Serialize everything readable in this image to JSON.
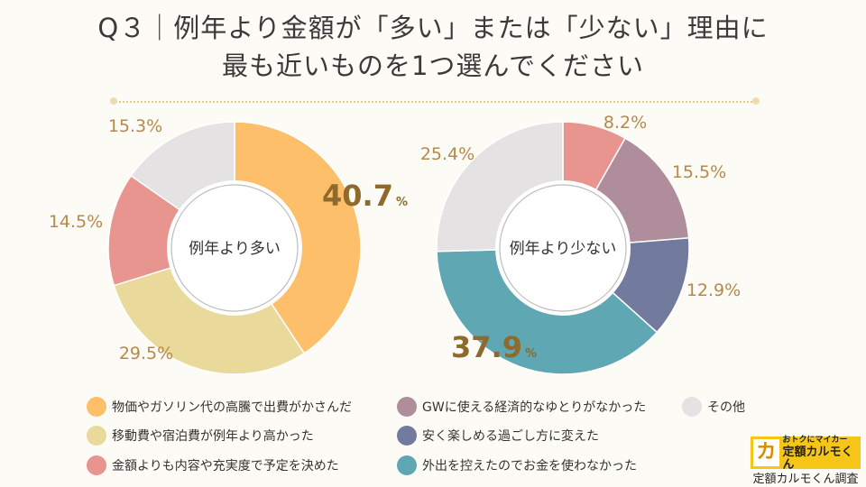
{
  "title": {
    "line1": "Q３｜例年より金額が「多い」または「少ない」理由に",
    "line2": "最も近いものを1つ選んでください"
  },
  "colors": {
    "gas": "#fdbf6a",
    "travel": "#e9d99a",
    "content": "#e8958f",
    "gw": "#b08d9b",
    "activity": "#727b9d",
    "outing": "#5ea7b3",
    "other": "#e4e2e2",
    "label": "#b5894a",
    "label_big": "#8e6a2e"
  },
  "chart_data": [
    {
      "type": "pie",
      "center_label": "例年より多い",
      "slices": [
        {
          "name": "物価やガソリン代の高騰で出費がかさんだ",
          "value": 40.7,
          "label": "40.7",
          "color_key": "gas",
          "emphasis": true
        },
        {
          "name": "移動費や宿泊費が例年より高かった",
          "value": 29.5,
          "label": "29.5%",
          "color_key": "travel"
        },
        {
          "name": "金額よりも内容や充実度で予定を決めた",
          "value": 14.5,
          "label": "14.5%",
          "color_key": "content"
        },
        {
          "name": "その他",
          "value": 15.3,
          "label": "15.3%",
          "color_key": "other"
        }
      ]
    },
    {
      "type": "pie",
      "center_label": "例年より少ない",
      "slices": [
        {
          "name": "金額よりも内容や充実度で予定を決めた",
          "value": 8.2,
          "label": "8.2%",
          "color_key": "content"
        },
        {
          "name": "GWに使える経済的なゆとりがなかった",
          "value": 15.5,
          "label": "15.5%",
          "color_key": "gw"
        },
        {
          "name": "安く楽しめる過ごし方に変えた",
          "value": 12.9,
          "label": "12.9%",
          "color_key": "activity"
        },
        {
          "name": "外出を控えたのでお金を使わなかった",
          "value": 37.9,
          "label": "37.9",
          "color_key": "outing",
          "emphasis": true
        },
        {
          "name": "その他",
          "value": 25.4,
          "label": "25.4%",
          "color_key": "other"
        }
      ]
    }
  ],
  "percent_sign": "%",
  "legend": [
    {
      "label": "物価やガソリン代の高騰で出費がかさんだ",
      "color_key": "gas"
    },
    {
      "label": "移動費や宿泊費が例年より高かった",
      "color_key": "travel"
    },
    {
      "label": "金額よりも内容や充実度で予定を決めた",
      "color_key": "content"
    },
    {
      "label": "GWに使える経済的なゆとりがなかった",
      "color_key": "gw"
    },
    {
      "label": "安く楽しめる過ごし方に変えた",
      "color_key": "activity"
    },
    {
      "label": "外出を控えたのでお金を使わなかった",
      "color_key": "outing"
    },
    {
      "label": "その他",
      "color_key": "other"
    }
  ],
  "logo": {
    "mark": "カ",
    "tagline": "おトクにマイカー",
    "name": "定額カルモくん"
  },
  "credit": "定額カルモくん調査"
}
